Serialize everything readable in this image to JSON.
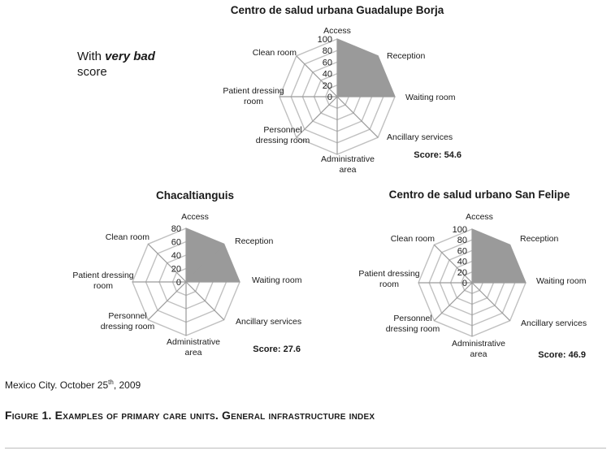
{
  "legend_note": {
    "prefix": "With ",
    "emphasis": "very bad",
    "suffix": "score"
  },
  "location": {
    "text_before": "Mexico City. October 25",
    "superscript": "th",
    "text_after": ", 2009"
  },
  "caption": "Figure 1. Examples of primary care units. General infrastructure index",
  "colors": {
    "grid": "#c0c0c0",
    "fill": "#9a9a9a",
    "axis": "#9a9a9a",
    "text": "#1a1a1a"
  },
  "chart_data": [
    {
      "type": "radar",
      "title": "Centro de salud urbana Guadalupe Borja",
      "score_label": "Score: 54.6",
      "axes": [
        "Access",
        "Reception",
        "Waiting room",
        "Ancillary services",
        "Administrative area",
        "Personnel dressing room",
        "Patient dressing room",
        "Clean room"
      ],
      "axis_labels": [
        [
          "Access"
        ],
        [
          "Reception"
        ],
        [
          "Waiting room"
        ],
        [
          "Ancillary services"
        ],
        [
          "Administrative",
          "area"
        ],
        [
          "Personnel",
          "dressing room"
        ],
        [
          "Patient dressing",
          "room"
        ],
        [
          "Clean room"
        ]
      ],
      "ticks": [
        "0",
        "20",
        "40",
        "60",
        "80",
        "100"
      ],
      "rmax": 100,
      "values": [
        100,
        100,
        100,
        0,
        0,
        0,
        0,
        0
      ]
    },
    {
      "type": "radar",
      "title": "Chacaltianguis",
      "score_label": "Score: 27.6",
      "axes": [
        "Access",
        "Reception",
        "Waiting room",
        "Ancillary services",
        "Administrative area",
        "Personnel dressing room",
        "Patient dressing room",
        "Clean room"
      ],
      "axis_labels": [
        [
          "Access"
        ],
        [
          "Reception"
        ],
        [
          "Waiting room"
        ],
        [
          "Ancillary services"
        ],
        [
          "Administrative",
          "area"
        ],
        [
          "Personnel",
          "dressing room"
        ],
        [
          "Patient dressing",
          "room"
        ],
        [
          "Clean room"
        ]
      ],
      "ticks": [
        "0",
        "20",
        "40",
        "60",
        "80"
      ],
      "rmax": 80,
      "values": [
        80,
        80,
        80,
        0,
        0,
        0,
        0,
        0
      ]
    },
    {
      "type": "radar",
      "title": "Centro de salud urbano San Felipe",
      "score_label": "Score: 46.9",
      "axes": [
        "Access",
        "Reception",
        "Waiting room",
        "Ancillary services",
        "Administrative area",
        "Personnel dressing room",
        "Patient dressing room",
        "Clean room"
      ],
      "axis_labels": [
        [
          "Access"
        ],
        [
          "Reception"
        ],
        [
          "Waiting room"
        ],
        [
          "Ancillary services"
        ],
        [
          "Administrative",
          "area"
        ],
        [
          "Personnel",
          "dressing room"
        ],
        [
          "Patient dressing",
          "room"
        ],
        [
          "Clean room"
        ]
      ],
      "ticks": [
        "0",
        "20",
        "40",
        "60",
        "80",
        "100"
      ],
      "rmax": 100,
      "values": [
        100,
        100,
        100,
        0,
        0,
        0,
        0,
        0
      ]
    }
  ]
}
